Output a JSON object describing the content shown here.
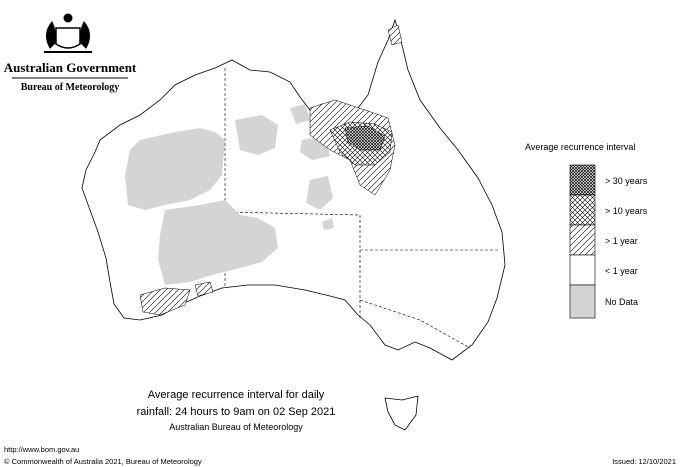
{
  "header": {
    "title": "Australian Government",
    "subtitle": "Bureau of Meteorology"
  },
  "legend": {
    "title": "Average recurrence interval",
    "items": [
      "> 30 years",
      "> 10 years",
      "> 1 year",
      "< 1 year",
      "No Data"
    ]
  },
  "caption": {
    "lines": [
      "Average recurrence interval for daily",
      "rainfall: 24 hours to 9am on 02 Sep 2021"
    ],
    "source": "Australian Bureau of Meteorology"
  },
  "footer": {
    "url": "http://www.bom.gov.au",
    "copyright": "© Commonwealth of Australia 2021, Bureau of Meteorology",
    "issued": "Issued: 12/10/2021"
  }
}
